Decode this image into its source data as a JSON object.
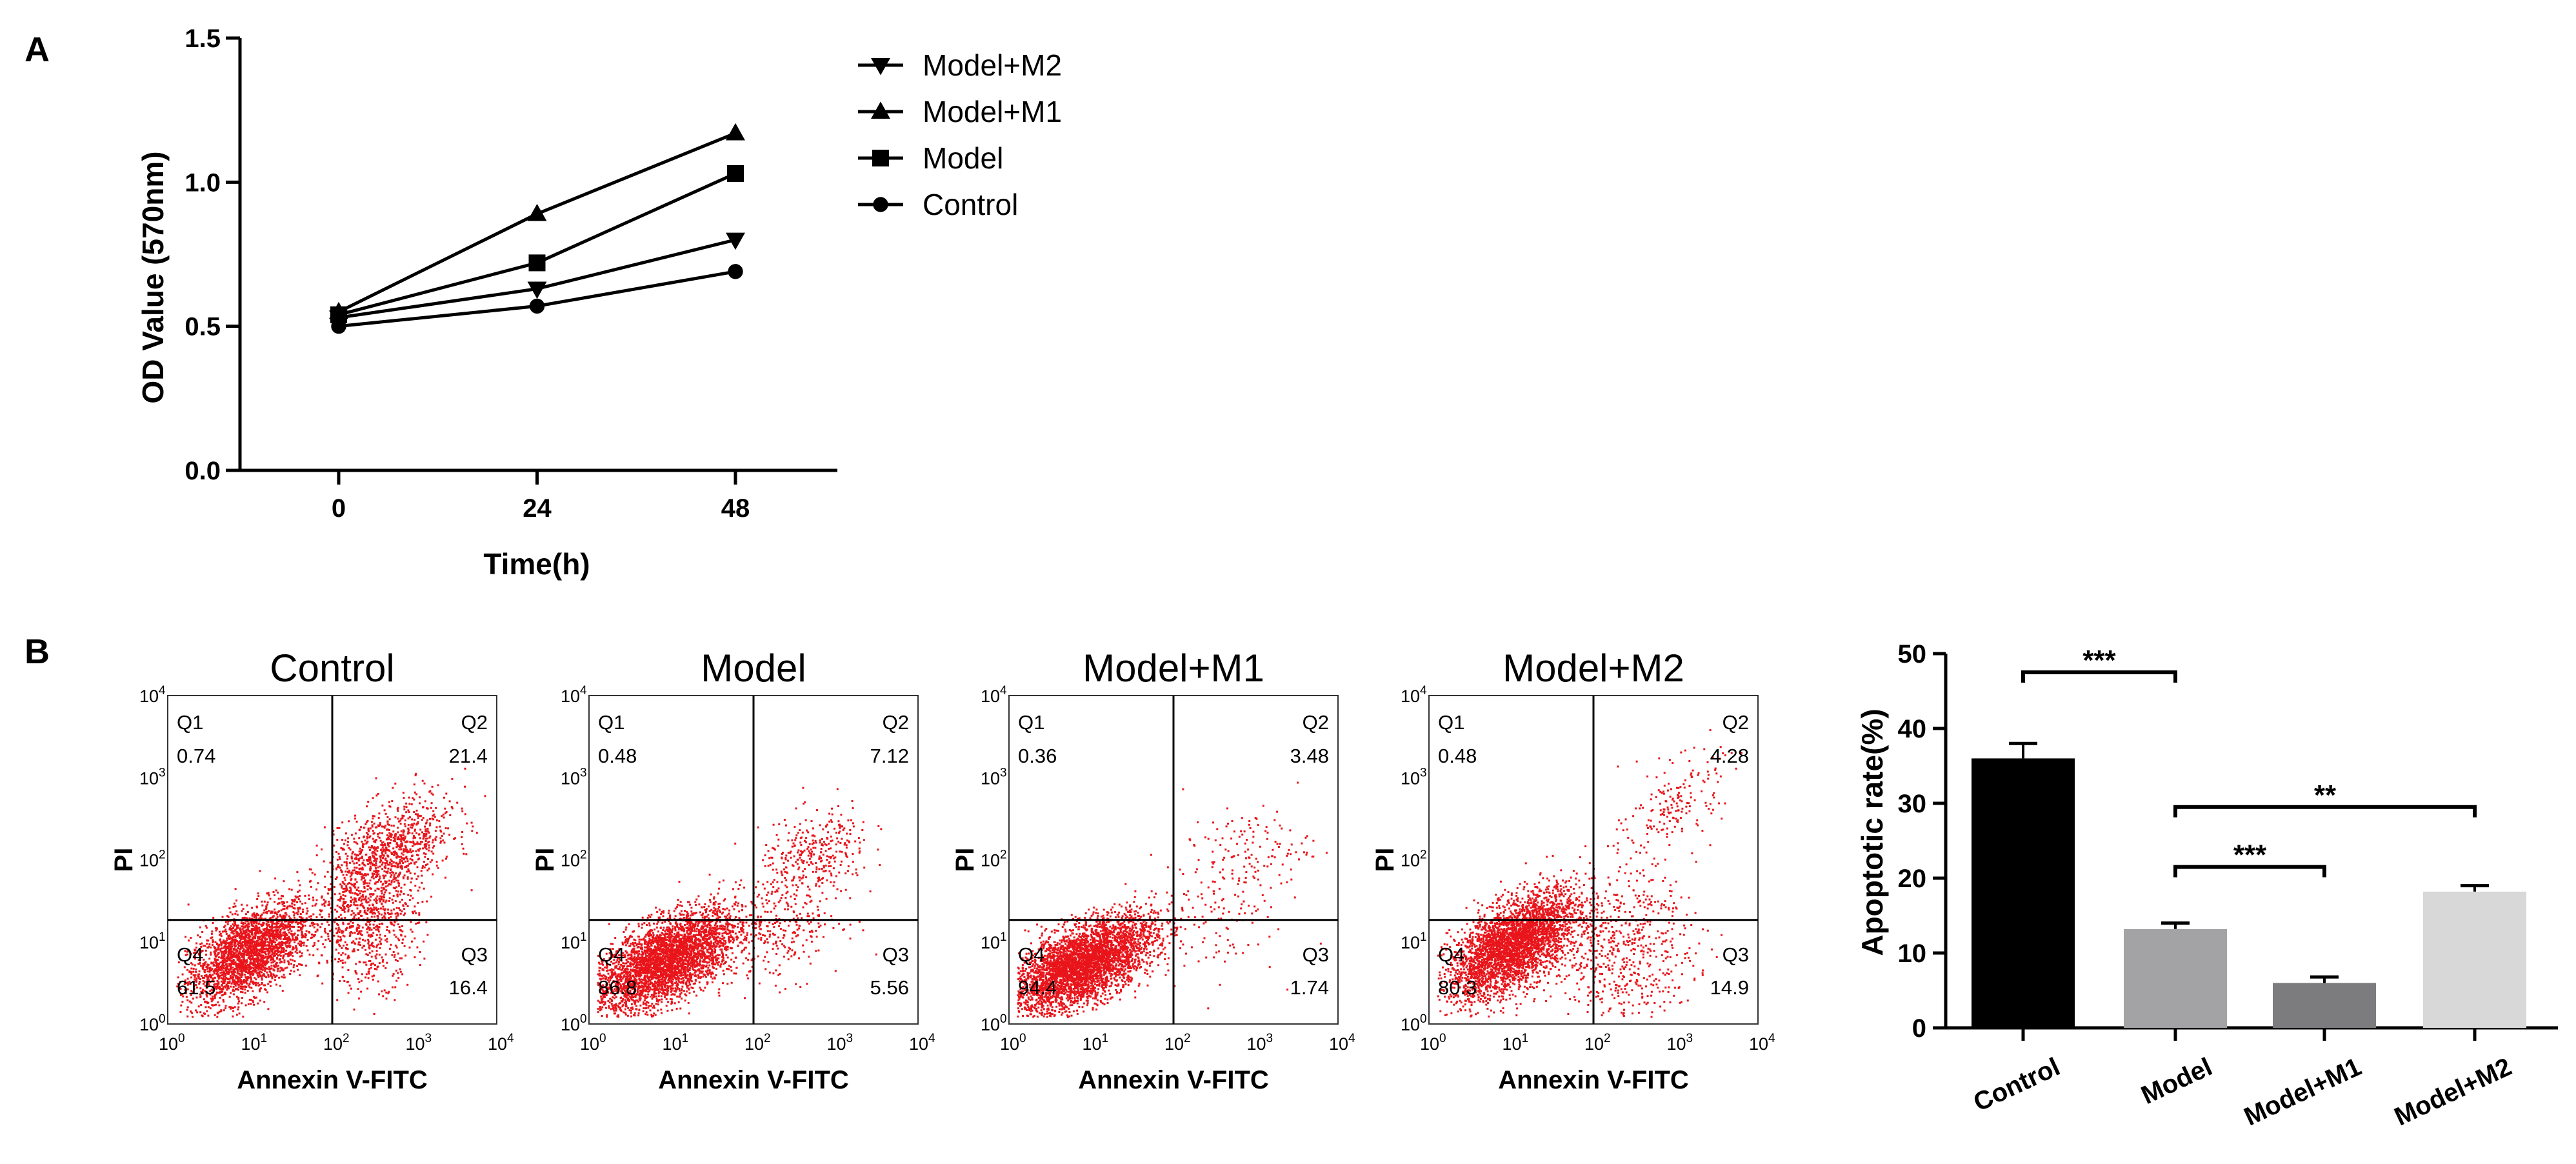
{
  "panels": {
    "a": "A",
    "b": "B"
  },
  "chart_data": [
    {
      "type": "line",
      "panel": "A",
      "xlabel": "Time(h)",
      "ylabel": "OD Value (570nm)",
      "x": [
        0,
        24,
        48
      ],
      "x_ticks": [
        "0",
        "24",
        "48"
      ],
      "ylim": [
        0.0,
        1.5
      ],
      "y_ticks": [
        "0.0",
        "0.5",
        "1.0",
        "1.5"
      ],
      "legend_position": "top-right",
      "series": [
        {
          "name": "Model+M2",
          "marker": "triangle-down",
          "values": [
            0.53,
            0.63,
            0.8
          ]
        },
        {
          "name": "Model+M1",
          "marker": "triangle-up",
          "values": [
            0.55,
            0.89,
            1.17
          ]
        },
        {
          "name": "Model",
          "marker": "square",
          "values": [
            0.54,
            0.72,
            1.03
          ]
        },
        {
          "name": "Control",
          "marker": "circle",
          "values": [
            0.5,
            0.57,
            0.69
          ]
        }
      ]
    },
    {
      "type": "scatter",
      "panel": "B",
      "subtype": "flow-cytometry-quadrants",
      "xlabel": "Annexin V-FITC",
      "ylabel": "PI",
      "axis_scale": "log",
      "tick_base": "10",
      "tick_exponents": [
        "0",
        "1",
        "2",
        "3",
        "4"
      ],
      "quadrant_labels": [
        "Q1",
        "Q2",
        "Q3",
        "Q4"
      ],
      "dot_color": "#e8151b",
      "plots": [
        {
          "title": "Control",
          "quadrants": {
            "Q1": "0.74",
            "Q2": "21.4",
            "Q3": "16.4",
            "Q4": "61.5"
          }
        },
        {
          "title": "Model",
          "quadrants": {
            "Q1": "0.48",
            "Q2": "7.12",
            "Q3": "5.56",
            "Q4": "86.8"
          }
        },
        {
          "title": "Model+M1",
          "quadrants": {
            "Q1": "0.36",
            "Q2": "3.48",
            "Q3": "1.74",
            "Q4": "94.4"
          }
        },
        {
          "title": "Model+M2",
          "quadrants": {
            "Q1": "0.48",
            "Q2": "4.28",
            "Q3": "14.9",
            "Q4": "80.3"
          }
        }
      ]
    },
    {
      "type": "bar",
      "panel": "B",
      "ylabel": "Apoptotic rate(%)",
      "categories": [
        "Control",
        "Model",
        "Model+M1",
        "Model+M2"
      ],
      "values": [
        36.0,
        13.2,
        6.0,
        18.2
      ],
      "errors": [
        2.0,
        0.8,
        0.8,
        0.8
      ],
      "colors": [
        "#000000",
        "#a3a3a5",
        "#7c7c7e",
        "#d8d8d8"
      ],
      "ylim": [
        0,
        50
      ],
      "y_ticks": [
        "0",
        "10",
        "20",
        "30",
        "40",
        "50"
      ],
      "significance": [
        {
          "from": 0,
          "to": 1,
          "label": "***"
        },
        {
          "from": 1,
          "to": 2,
          "label": "***"
        },
        {
          "from": 1,
          "to": 3,
          "label": "**"
        }
      ]
    }
  ]
}
